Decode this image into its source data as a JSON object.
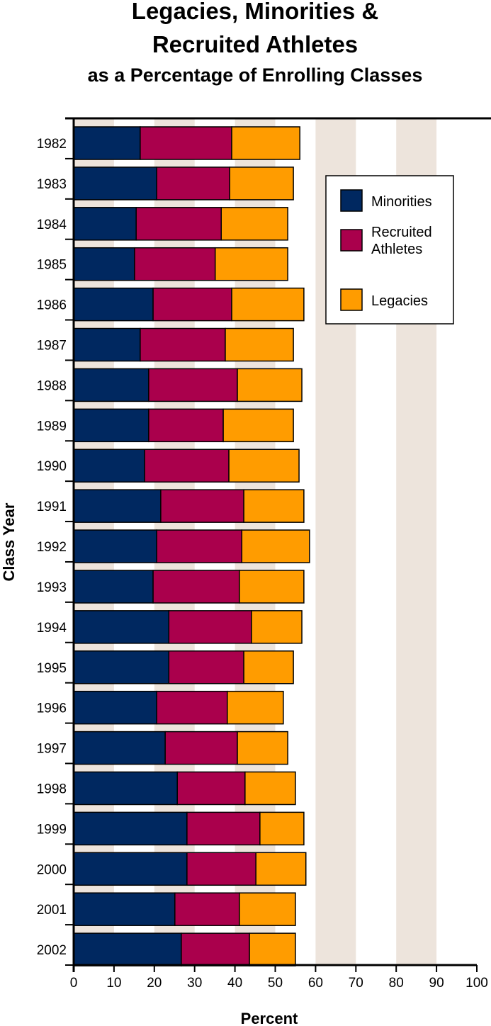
{
  "chart_data": {
    "type": "bar",
    "orientation": "horizontal",
    "stacked": true,
    "title": [
      "Legacies, Minorities &",
      "Recruited Athletes"
    ],
    "subtitle": "as a Percentage of Enrolling Classes",
    "xlabel": "Percent",
    "ylabel": "Class Year",
    "xlim": [
      0,
      100
    ],
    "xticks": [
      0,
      10,
      20,
      30,
      40,
      50,
      60,
      70,
      80,
      90,
      100
    ],
    "grid": "alternating vertical bands every 10",
    "legend_placement": "right",
    "categories": [
      "1982",
      "1983",
      "1984",
      "1985",
      "1986",
      "1987",
      "1988",
      "1989",
      "1990",
      "1991",
      "1992",
      "1993",
      "1994",
      "1995",
      "1996",
      "1997",
      "1998",
      "1999",
      "2000",
      "2001",
      "2002"
    ],
    "series": [
      {
        "name": "Minorities",
        "color": "#002860",
        "values": [
          16.5,
          20.6,
          15.5,
          15.1,
          19.7,
          16.5,
          18.6,
          18.6,
          17.6,
          21.6,
          20.6,
          19.7,
          23.6,
          23.6,
          20.6,
          22.7,
          25.7,
          28.1,
          28.1,
          25.1,
          26.7
        ]
      },
      {
        "name": "Recruited Athletes",
        "color": "#AA004C",
        "values": [
          22.7,
          18.1,
          21.1,
          20.0,
          19.5,
          21.1,
          22.0,
          18.5,
          20.9,
          20.6,
          21.1,
          21.4,
          20.5,
          18.6,
          17.5,
          17.9,
          16.8,
          18.1,
          17.1,
          16.0,
          16.9
        ]
      },
      {
        "name": "Legacies",
        "color": "#FF9C00",
        "values": [
          16.9,
          15.8,
          16.5,
          18.0,
          17.9,
          16.9,
          16.0,
          17.4,
          17.4,
          14.9,
          16.8,
          16.0,
          12.5,
          12.3,
          13.9,
          12.5,
          12.5,
          10.9,
          12.4,
          13.9,
          11.4
        ]
      }
    ],
    "legend_labels": [
      [
        "Minorities"
      ],
      [
        "Recruited",
        "Athletes"
      ],
      [
        "Legacies"
      ]
    ],
    "band_color": "#EDE4DC"
  }
}
